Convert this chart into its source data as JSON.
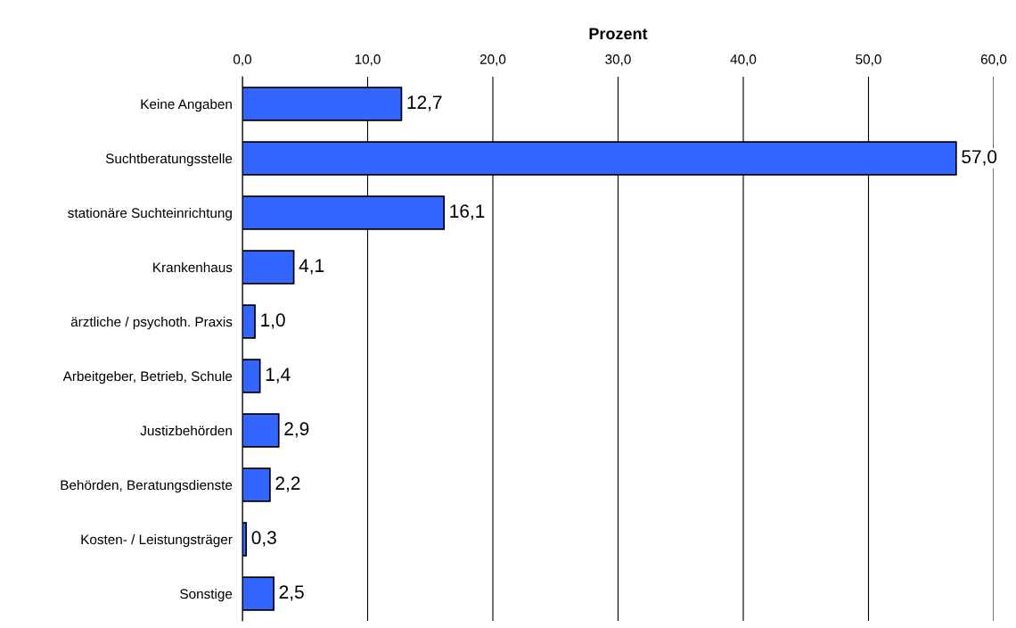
{
  "chart_data": {
    "type": "bar",
    "orientation": "horizontal",
    "xlabel": "Prozent",
    "categories": [
      "Keine Angaben",
      "Suchtberatungsstelle",
      "stationäre Suchteinrichtung",
      "Krankenhaus",
      "ärztliche / psychoth. Praxis",
      "Arbeitgeber, Betrieb, Schule",
      "Justizbehörden",
      "Behörden, Beratungsdienste",
      "Kosten- / Leistungsträger",
      "Sonstige"
    ],
    "values": [
      12.7,
      57.0,
      16.1,
      4.1,
      1.0,
      1.4,
      2.9,
      2.2,
      0.3,
      2.5
    ],
    "value_labels": [
      "12,7",
      "57,0",
      "16,1",
      "4,1",
      "1,0",
      "1,4",
      "2,9",
      "2,2",
      "0,3",
      "2,5"
    ],
    "color": "#3366ff",
    "xlim": [
      0,
      60
    ],
    "xticks": [
      {
        "value": 0,
        "label": "0,0"
      },
      {
        "value": 10,
        "label": "10,0"
      },
      {
        "value": 20,
        "label": "20,0"
      },
      {
        "value": 30,
        "label": "30,0"
      },
      {
        "value": 40,
        "label": "40,0"
      },
      {
        "value": 50,
        "label": "50,0"
      },
      {
        "value": 60,
        "label": "60,0"
      }
    ],
    "grid": "x",
    "legend": false
  }
}
